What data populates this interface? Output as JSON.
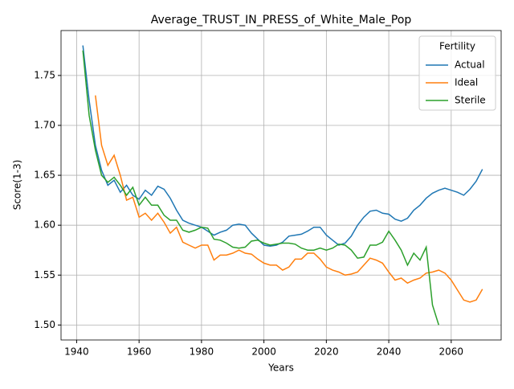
{
  "chart_data": {
    "type": "line",
    "title": "Average_TRUST_IN_PRESS_of_White_Male_Pop",
    "xlabel": "Years",
    "ylabel": "Score(1-3)",
    "legend_title": "Fertility",
    "legend": "upper right",
    "grid": true,
    "x": [
      1942,
      1944,
      1946,
      1948,
      1950,
      1952,
      1954,
      1956,
      1958,
      1960,
      1962,
      1964,
      1966,
      1968,
      1970,
      1972,
      1974,
      1976,
      1978,
      1980,
      1982,
      1984,
      1986,
      1988,
      1990,
      1992,
      1994,
      1996,
      1998,
      2000,
      2002,
      2004,
      2006,
      2008,
      2010,
      2012,
      2014,
      2016,
      2018,
      2020,
      2022,
      2024,
      2026,
      2028,
      2030,
      2032,
      2034,
      2036,
      2038,
      2040,
      2042,
      2044,
      2046,
      2048,
      2050,
      2052,
      2054,
      2056,
      2058,
      2060,
      2062,
      2064,
      2066,
      2068,
      2070
    ],
    "series": [
      {
        "name": "Actual",
        "color": "#1f77b4",
        "values": [
          1.78,
          1.725,
          1.68,
          1.655,
          1.64,
          1.645,
          1.633,
          1.64,
          1.63,
          1.626,
          1.635,
          1.63,
          1.639,
          1.636,
          1.627,
          1.615,
          1.605,
          1.602,
          1.6,
          1.598,
          1.594,
          1.59,
          1.593,
          1.595,
          1.6,
          1.601,
          1.6,
          1.592,
          1.586,
          1.58,
          1.579,
          1.58,
          1.583,
          1.589,
          1.59,
          1.591,
          1.594,
          1.598,
          1.598,
          1.59,
          1.585,
          1.58,
          1.582,
          1.589,
          1.6,
          1.608,
          1.614,
          1.615,
          1.612,
          1.611,
          1.606,
          1.604,
          1.607,
          1.615,
          1.62,
          1.627,
          1.632,
          1.635,
          1.637,
          1.635,
          1.633,
          1.63,
          1.636,
          1.644,
          1.656
        ]
      },
      {
        "name": "Ideal",
        "color": "#ff7f0e",
        "values": [
          null,
          null,
          1.73,
          1.68,
          1.66,
          1.67,
          1.65,
          1.625,
          1.628,
          1.608,
          1.612,
          1.605,
          1.612,
          1.603,
          1.592,
          1.598,
          1.583,
          1.58,
          1.577,
          1.58,
          1.58,
          1.565,
          1.57,
          1.57,
          1.572,
          1.575,
          1.572,
          1.571,
          1.566,
          1.562,
          1.56,
          1.56,
          1.555,
          1.558,
          1.566,
          1.566,
          1.572,
          1.572,
          1.566,
          1.558,
          1.555,
          1.553,
          1.55,
          1.551,
          1.553,
          1.56,
          1.567,
          1.565,
          1.562,
          1.553,
          1.545,
          1.547,
          1.542,
          1.545,
          1.547,
          1.552,
          1.553,
          1.555,
          1.552,
          1.545,
          1.535,
          1.525,
          1.523,
          1.525,
          1.536
        ]
      },
      {
        "name": "Sterile",
        "color": "#2ca02c",
        "values": [
          1.775,
          1.71,
          1.675,
          1.65,
          1.643,
          1.648,
          1.64,
          1.63,
          1.638,
          1.62,
          1.628,
          1.62,
          1.62,
          1.61,
          1.605,
          1.605,
          1.595,
          1.593,
          1.595,
          1.598,
          1.597,
          1.586,
          1.585,
          1.582,
          1.578,
          1.577,
          1.578,
          1.584,
          1.585,
          1.582,
          1.58,
          1.581,
          1.582,
          1.582,
          1.581,
          1.577,
          1.575,
          1.575,
          1.577,
          1.575,
          1.577,
          1.581,
          1.58,
          1.575,
          1.567,
          1.568,
          1.58,
          1.58,
          1.583,
          1.594,
          1.585,
          1.575,
          1.56,
          1.572,
          1.565,
          1.578,
          1.52,
          1.5,
          null,
          null,
          null,
          null,
          null,
          null,
          null
        ]
      }
    ],
    "xlim": [
      1935,
      2076
    ],
    "xticks": [
      1940,
      1960,
      1980,
      2000,
      2020,
      2040,
      2060
    ],
    "ylim": [
      1.485,
      1.795
    ],
    "yticks": [
      {
        "value": 1.5,
        "label": "1.50"
      },
      1.55,
      {
        "value": 1.6,
        "label": "1.60"
      },
      1.65,
      {
        "value": 1.7,
        "label": "1.70"
      },
      1.75
    ]
  }
}
